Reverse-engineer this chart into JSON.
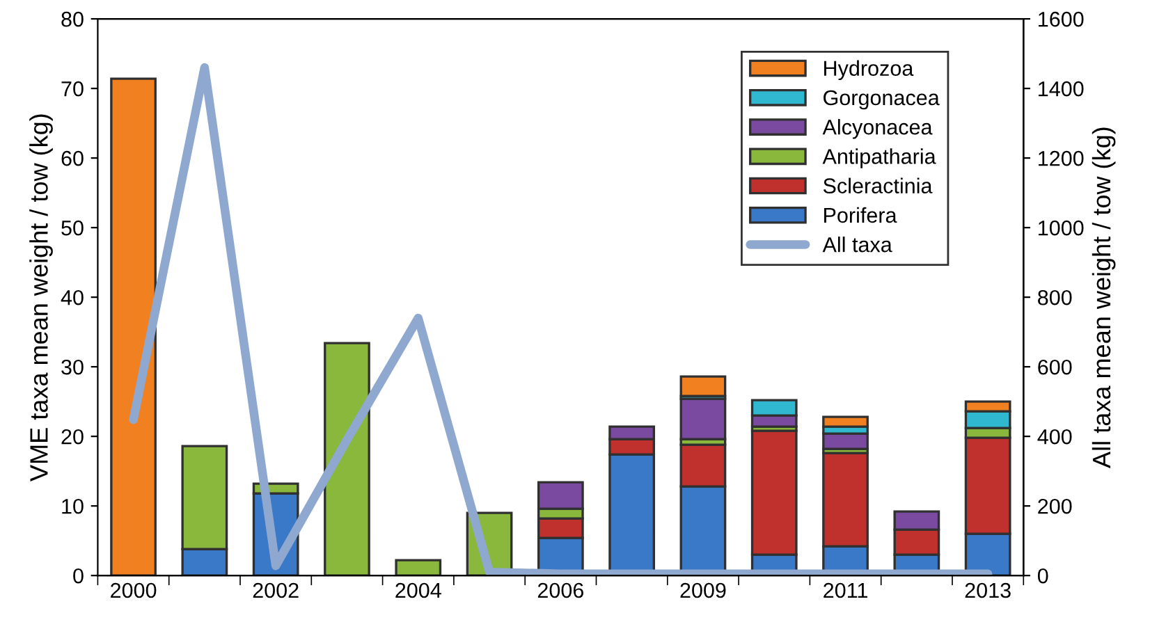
{
  "chart_data": {
    "type": "bar",
    "stacked": true,
    "ylabel": "VME taxa mean weight / tow (kg)",
    "y2label": "All taxa mean weight / tow (kg)",
    "categories": [
      "2000",
      null,
      "2002",
      null,
      "2004",
      null,
      "2006",
      null,
      "2009",
      null,
      "2011",
      null,
      "2013"
    ],
    "series": [
      {
        "name": "Porifera",
        "color": "#3a78c8",
        "values": [
          null,
          3.8,
          11.8,
          null,
          null,
          null,
          5.4,
          17.4,
          12.8,
          3.0,
          4.2,
          3.0,
          6.0
        ]
      },
      {
        "name": "Scleractinia",
        "color": "#c0302c",
        "values": [
          null,
          null,
          null,
          null,
          null,
          null,
          2.8,
          2.2,
          6.0,
          17.8,
          13.4,
          3.6,
          13.8
        ]
      },
      {
        "name": "Antipatharia",
        "color": "#8ab83c",
        "values": [
          null,
          14.8,
          1.4,
          33.4,
          2.2,
          9.0,
          1.4,
          null,
          0.8,
          0.6,
          0.6,
          null,
          1.4
        ]
      },
      {
        "name": "Alcyonacea",
        "color": "#7a4aa0",
        "values": [
          null,
          null,
          null,
          null,
          null,
          null,
          3.8,
          1.8,
          5.8,
          1.6,
          2.2,
          2.6,
          null
        ]
      },
      {
        "name": "Gorgonacea",
        "color": "#30b8d0",
        "values": [
          null,
          null,
          null,
          null,
          null,
          null,
          null,
          null,
          0.4,
          2.2,
          1.0,
          null,
          2.4
        ]
      },
      {
        "name": "Hydrozoa",
        "color": "#f08020",
        "values": [
          71.4,
          null,
          null,
          null,
          null,
          null,
          null,
          null,
          2.8,
          null,
          1.4,
          null,
          1.4
        ]
      },
      {
        "name": "All taxa",
        "color": "#8ea8d0",
        "type": "line",
        "axis": "y2",
        "values": [
          448,
          1460,
          28,
          390,
          740,
          10,
          5,
          5,
          5,
          5,
          5,
          5,
          5
        ]
      }
    ],
    "ylim": [
      0,
      80
    ],
    "yticks": [
      0,
      10,
      20,
      30,
      40,
      50,
      60,
      70,
      80
    ],
    "y2lim": [
      0,
      1600
    ],
    "y2ticks": [
      0,
      200,
      400,
      600,
      800,
      1000,
      1200,
      1400,
      1600
    ],
    "grid": false,
    "legend": "top right"
  }
}
